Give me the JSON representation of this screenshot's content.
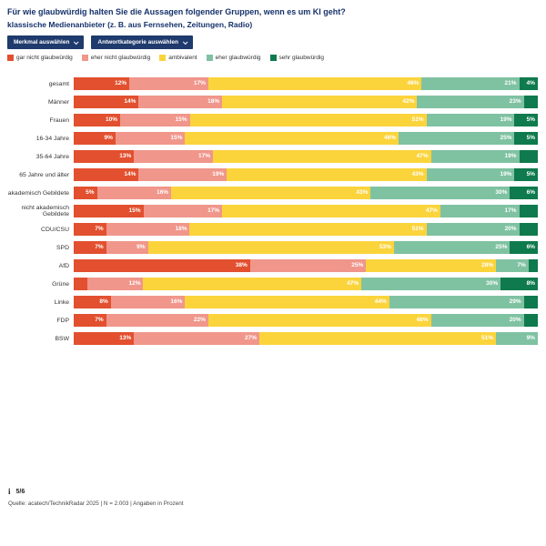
{
  "header": {
    "title": "Für wie glaubwürdig halten Sie die Aussagen folgender Gruppen, wenn es um KI geht?",
    "subtitle": "klassische Medienanbieter (z. B. aus Fernsehen, Zeitungen, Radio)"
  },
  "controls": {
    "merkmal_label": "Merkmal auswählen",
    "antwortkategorie_label": "Antwortkategorie auswählen"
  },
  "colors": {
    "navy": "#1f3a6d",
    "title_navy": "#14316b"
  },
  "chart_data": {
    "type": "bar",
    "stacked": true,
    "orientation": "horizontal",
    "unit": "percent",
    "xlim": [
      0,
      100
    ],
    "legend_position": "top",
    "series_names": [
      "gar nicht glaubwürdig",
      "eher nicht glaubwürdig",
      "ambivalent",
      "eher glaubwürdig",
      "sehr glaubwürdig"
    ],
    "colors": [
      "#e2502f",
      "#f0968b",
      "#fbd43c",
      "#7fc2a2",
      "#0f7a4d"
    ],
    "categories": [
      "gesamt",
      "Männer",
      "Frauen",
      "16-34 Jahre",
      "35-64 Jahre",
      "65 Jahre und älter",
      "akademisch Gebildete",
      "nicht akademisch Gebildete",
      "CDU/CSU",
      "SPD",
      "AfD",
      "Grüne",
      "Linke",
      "FDP",
      "BSW"
    ],
    "rows": [
      {
        "category": "gesamt",
        "values": [
          12,
          17,
          46,
          21,
          4
        ],
        "labels": [
          "12%",
          "17%",
          "46%",
          "21%",
          "4%"
        ]
      },
      {
        "category": "Männer",
        "values": [
          14,
          18,
          42,
          23,
          3
        ],
        "labels": [
          "14%",
          "18%",
          "42%",
          "23%",
          ""
        ]
      },
      {
        "category": "Frauen",
        "values": [
          10,
          15,
          51,
          19,
          5
        ],
        "labels": [
          "10%",
          "15%",
          "51%",
          "19%",
          "5%"
        ]
      },
      {
        "category": "16-34 Jahre",
        "values": [
          9,
          15,
          46,
          25,
          5
        ],
        "labels": [
          "9%",
          "15%",
          "46%",
          "25%",
          "5%"
        ]
      },
      {
        "category": "35-64 Jahre",
        "values": [
          13,
          17,
          47,
          19,
          4
        ],
        "labels": [
          "13%",
          "17%",
          "47%",
          "19%",
          ""
        ]
      },
      {
        "category": "65 Jahre und älter",
        "values": [
          14,
          19,
          43,
          19,
          5
        ],
        "labels": [
          "14%",
          "19%",
          "43%",
          "19%",
          "5%"
        ]
      },
      {
        "category": "akademisch Gebildete",
        "values": [
          5,
          16,
          43,
          30,
          6
        ],
        "labels": [
          "5%",
          "16%",
          "43%",
          "30%",
          "6%"
        ]
      },
      {
        "category": "nicht akademisch Gebildete",
        "values": [
          15,
          17,
          47,
          17,
          4
        ],
        "labels": [
          "15%",
          "17%",
          "47%",
          "17%",
          ""
        ]
      },
      {
        "category": "CDU/CSU",
        "values": [
          7,
          18,
          51,
          20,
          4
        ],
        "labels": [
          "7%",
          "18%",
          "51%",
          "20%",
          ""
        ]
      },
      {
        "category": "SPD",
        "values": [
          7,
          9,
          53,
          25,
          6
        ],
        "labels": [
          "7%",
          "9%",
          "53%",
          "25%",
          "6%"
        ]
      },
      {
        "category": "AfD",
        "values": [
          38,
          25,
          28,
          7,
          2
        ],
        "labels": [
          "38%",
          "25%",
          "28%",
          "7%",
          ""
        ]
      },
      {
        "category": "Grüne",
        "values": [
          3,
          12,
          47,
          30,
          8
        ],
        "labels": [
          "",
          "12%",
          "47%",
          "30%",
          "8%"
        ]
      },
      {
        "category": "Linke",
        "values": [
          8,
          16,
          44,
          29,
          3
        ],
        "labels": [
          "8%",
          "16%",
          "44%",
          "29%",
          ""
        ]
      },
      {
        "category": "FDP",
        "values": [
          7,
          22,
          48,
          20,
          3
        ],
        "labels": [
          "7%",
          "22%",
          "48%",
          "20%",
          ""
        ]
      },
      {
        "category": "BSW",
        "values": [
          13,
          27,
          51,
          9,
          0
        ],
        "labels": [
          "13%",
          "27%",
          "51%",
          "9%",
          ""
        ]
      }
    ]
  },
  "legend": [
    {
      "label": "gar nicht glaubwürdig",
      "color": "#e2502f"
    },
    {
      "label": "eher nicht glaubwürdig",
      "color": "#f0968b"
    },
    {
      "label": "ambivalent",
      "color": "#fbd43c"
    },
    {
      "label": "eher glaubwürdig",
      "color": "#7fc2a2"
    },
    {
      "label": "sehr glaubwürdig",
      "color": "#0f7a4d"
    }
  ],
  "footer": {
    "pagination": "5/6",
    "source": "Quelle: acatech/TechnikRadar 2025 | N = 2.003 | Angaben in Prozent"
  }
}
